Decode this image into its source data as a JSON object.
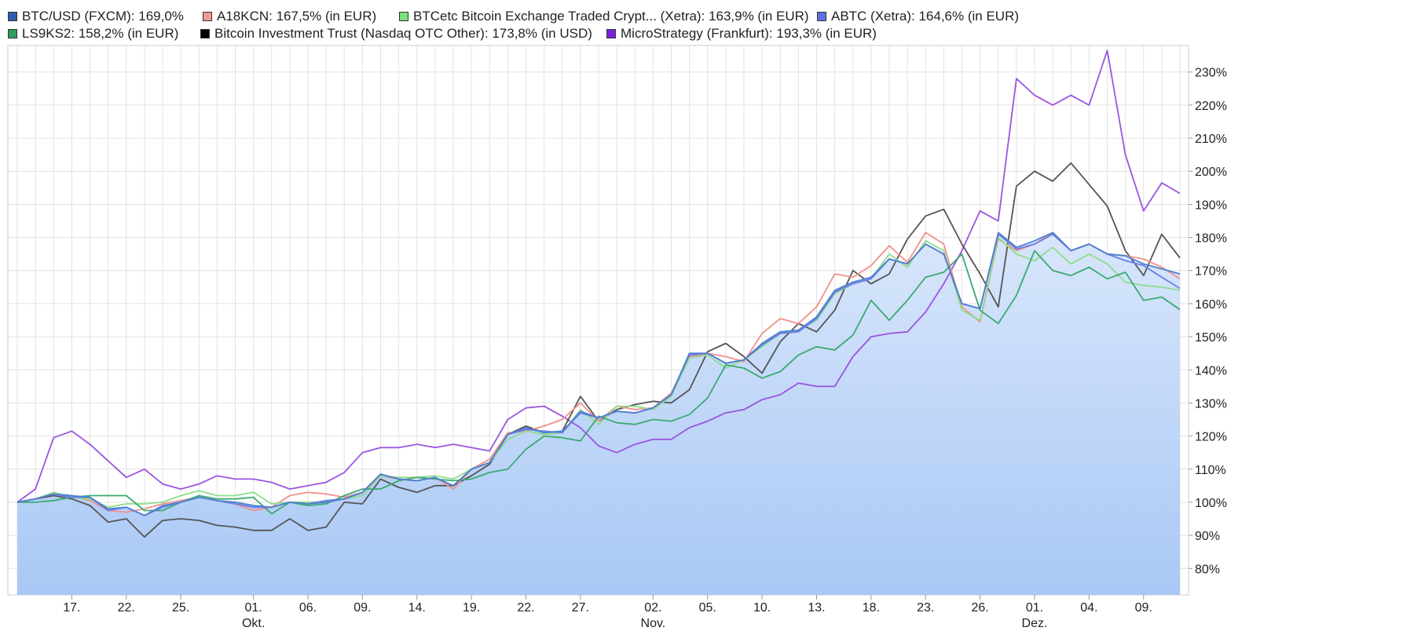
{
  "chart_data": {
    "type": "line",
    "title": "",
    "xlabel": "",
    "ylabel": "",
    "ylim": [
      72,
      238
    ],
    "y_ticks": [
      {
        "value": 80,
        "label": "80%"
      },
      {
        "value": 90,
        "label": "90%"
      },
      {
        "value": 100,
        "label": "100%"
      },
      {
        "value": 110,
        "label": "110%"
      },
      {
        "value": 120,
        "label": "120%"
      },
      {
        "value": 130,
        "label": "130%"
      },
      {
        "value": 140,
        "label": "140%"
      },
      {
        "value": 150,
        "label": "150%"
      },
      {
        "value": 160,
        "label": "160%"
      },
      {
        "value": 170,
        "label": "170%"
      },
      {
        "value": 180,
        "label": "180%"
      },
      {
        "value": 190,
        "label": "190%"
      },
      {
        "value": 200,
        "label": "200%"
      },
      {
        "value": 210,
        "label": "210%"
      },
      {
        "value": 220,
        "label": "220%"
      },
      {
        "value": 230,
        "label": "230%"
      }
    ],
    "x_ticks": [
      {
        "index": 3,
        "label": "17."
      },
      {
        "index": 6,
        "label": "22."
      },
      {
        "index": 9,
        "label": "25."
      },
      {
        "index": 13,
        "label": "01.",
        "month": "Okt."
      },
      {
        "index": 16,
        "label": "06."
      },
      {
        "index": 19,
        "label": "09."
      },
      {
        "index": 22,
        "label": "14."
      },
      {
        "index": 25,
        "label": "19."
      },
      {
        "index": 28,
        "label": "22."
      },
      {
        "index": 31,
        "label": "27."
      },
      {
        "index": 35,
        "label": "02.",
        "month": "Nov."
      },
      {
        "index": 38,
        "label": "05."
      },
      {
        "index": 41,
        "label": "10."
      },
      {
        "index": 44,
        "label": "13."
      },
      {
        "index": 47,
        "label": "18."
      },
      {
        "index": 50,
        "label": "23."
      },
      {
        "index": 53,
        "label": "26."
      },
      {
        "index": 56,
        "label": "01.",
        "month": "Dez."
      },
      {
        "index": 59,
        "label": "04."
      },
      {
        "index": 62,
        "label": "09."
      }
    ],
    "x_count": 65,
    "grid": true,
    "legend_position": "top",
    "series": [
      {
        "name": "BTC/USD (FXCM)",
        "legend": "BTC/USD (FXCM): 169,0%",
        "color": "#4f7fd0",
        "swatch": "#2f5fb0",
        "filled": true,
        "values": [
          100,
          101,
          102.5,
          102,
          101.5,
          98,
          98.5,
          96,
          99,
          100,
          101.5,
          100.5,
          100,
          99,
          98.5,
          100,
          99.5,
          100,
          101,
          103,
          108.5,
          107,
          106.5,
          107.5,
          105,
          110,
          112,
          120.5,
          122.5,
          121,
          121.5,
          127,
          125.5,
          127.5,
          127,
          128.5,
          132.5,
          145,
          145,
          142,
          143,
          148,
          151.5,
          152,
          156,
          164,
          166.5,
          168,
          173.5,
          172,
          178,
          175,
          160,
          158.5,
          181.5,
          177,
          179,
          181.5,
          176,
          178,
          175,
          174.5,
          172,
          170.5,
          169
        ]
      },
      {
        "name": "A18KCN",
        "legend": "A18KCN: 167,5% (in EUR)",
        "color": "#f0908a",
        "swatch": "#f09a94",
        "filled": false,
        "values": [
          100,
          101,
          102.5,
          102,
          100.5,
          97.5,
          97,
          98,
          99.5,
          100.5,
          101.5,
          100.5,
          99.5,
          97.5,
          98.5,
          102,
          103,
          102.5,
          101.5,
          103,
          108,
          107,
          106.5,
          107.5,
          104,
          110,
          113,
          121,
          121.5,
          123,
          125,
          130,
          124.5,
          129,
          128,
          128.5,
          133,
          144,
          145,
          144,
          142.5,
          151,
          155.5,
          154,
          159,
          169,
          168,
          171.5,
          177.5,
          172.5,
          181.5,
          178,
          159,
          154.5,
          179.5,
          176,
          178,
          181.5,
          176,
          178,
          175,
          174.5,
          173.5,
          171,
          167.5
        ]
      },
      {
        "name": "BTCetc Bitcoin Exchange Traded Crypt... (Xetra)",
        "legend": "BTCetc Bitcoin Exchange Traded Crypt... (Xetra): 163,9% (in EUR)",
        "color": "#8edd8a",
        "swatch": "#7de07a",
        "filled": false,
        "values": [
          100,
          101,
          103,
          101.5,
          101,
          98.5,
          99.5,
          99.5,
          100,
          102,
          103.5,
          102,
          102,
          103,
          99.5,
          100,
          100,
          100,
          101,
          102,
          108,
          107.5,
          107.5,
          108,
          107,
          110,
          112,
          119,
          121.5,
          120.5,
          121,
          128,
          123.5,
          129,
          129,
          128,
          132,
          143.5,
          144.5,
          140.5,
          143,
          147,
          151,
          152,
          155,
          163,
          166,
          167.5,
          175,
          171,
          179,
          176,
          158,
          155,
          180,
          175,
          173,
          177,
          172,
          175,
          172,
          166.5,
          165.5,
          165,
          164
        ]
      },
      {
        "name": "ABTC (Xetra)",
        "legend": "ABTC (Xetra): 164,6% (in EUR)",
        "color": "#6a7ee8",
        "swatch": "#6070e0",
        "filled": false,
        "values": [
          100,
          101,
          102.5,
          101.5,
          101.5,
          97.5,
          98.5,
          96,
          98.5,
          100,
          101.5,
          100.5,
          99.5,
          98.5,
          98.5,
          100,
          99.5,
          100.5,
          101,
          103,
          108.5,
          107,
          106.5,
          107.5,
          105,
          110,
          112,
          120.5,
          122,
          121.5,
          121,
          127.5,
          125.5,
          127.5,
          127,
          128.5,
          132.5,
          144.5,
          145,
          142,
          143,
          147.5,
          151,
          151.5,
          155.5,
          163.5,
          166,
          167.5,
          173.5,
          172,
          178,
          175,
          160,
          158.5,
          181,
          176.5,
          178,
          181,
          176,
          178,
          175,
          173,
          171.5,
          168,
          164.6
        ]
      },
      {
        "name": "LS9KS2",
        "legend": "LS9KS2: 158,2% (in EUR)",
        "color": "#3aaa70",
        "swatch": "#2d9d62",
        "filled": false,
        "values": [
          100,
          100,
          100.5,
          101.5,
          102,
          102,
          102,
          97.5,
          97.5,
          100,
          102,
          101,
          101,
          101.5,
          96.5,
          100,
          99,
          99.5,
          102,
          104,
          104,
          106.5,
          107.5,
          107,
          106.5,
          107,
          109,
          110,
          116,
          120,
          119.5,
          118.5,
          126,
          124,
          123.5,
          125,
          124.5,
          126.5,
          131.5,
          141.5,
          140.5,
          137.5,
          139.5,
          144.5,
          147,
          146,
          150.5,
          161,
          155,
          161,
          168,
          169.5,
          175,
          158,
          154,
          162.5,
          176,
          170,
          168.5,
          171,
          167.5,
          169.5,
          161,
          162,
          158.2
        ]
      },
      {
        "name": "Bitcoin Investment Trust (Nasdaq OTC Other)",
        "legend": "Bitcoin Investment Trust (Nasdaq OTC Other): 173,8% (in USD)",
        "color": "#555555",
        "swatch": "#000000",
        "filled": false,
        "values": [
          100,
          101,
          102,
          101,
          99,
          94,
          95,
          89.5,
          94.5,
          95,
          94.5,
          93,
          92.5,
          91.5,
          91.5,
          95,
          91.5,
          92.5,
          100,
          99.5,
          107,
          104.5,
          103,
          105,
          105,
          108,
          111.5,
          120.5,
          123,
          121,
          121.5,
          132,
          124.5,
          128,
          129.5,
          130.5,
          130,
          134,
          145.5,
          148,
          144,
          139,
          148.5,
          154,
          151.5,
          158,
          170,
          166,
          169,
          179.5,
          186.5,
          188.5,
          178,
          169,
          159,
          195.5,
          200,
          197,
          202.5,
          196,
          189.5,
          176,
          168.5,
          181,
          173.8
        ]
      },
      {
        "name": "MicroStrategy (Frankfurt)",
        "legend": "MicroStrategy (Frankfurt): 193,3% (in EUR)",
        "color": "#9a55e0",
        "swatch": "#7a20e0",
        "filled": false,
        "values": [
          100,
          104,
          119.5,
          121.5,
          117.5,
          112.5,
          107.5,
          110,
          105.5,
          104,
          105.5,
          108,
          107,
          107,
          106,
          104,
          105,
          106,
          109,
          115,
          116.5,
          116.5,
          117.5,
          116.5,
          117.5,
          116.5,
          115.5,
          125,
          128.5,
          129,
          126,
          122.5,
          117,
          115,
          117.5,
          119,
          119,
          122.5,
          124.5,
          127,
          128,
          131,
          132.5,
          136,
          135,
          135,
          144,
          150,
          151,
          151.5,
          157.5,
          166,
          176,
          188,
          185,
          228,
          223,
          220,
          223,
          220,
          236.5,
          205,
          188,
          196.5,
          193.3
        ]
      }
    ]
  }
}
